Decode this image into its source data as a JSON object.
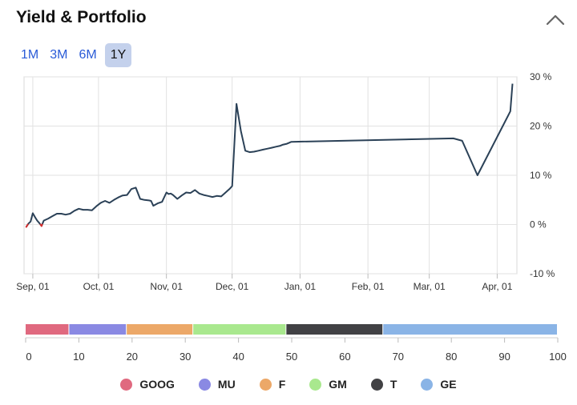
{
  "header": {
    "title": "Yield & Portfolio",
    "collapse_icon": "chevron-up-icon"
  },
  "ranges": [
    {
      "label": "1M",
      "active": false
    },
    {
      "label": "3M",
      "active": false
    },
    {
      "label": "6M",
      "active": false
    },
    {
      "label": "1Y",
      "active": true
    }
  ],
  "chart_data": [
    {
      "type": "line",
      "title": "",
      "xlabel": "",
      "ylabel": "",
      "x_tick_labels": [
        "Sep, 01",
        "Oct, 01",
        "Nov, 01",
        "Dec, 01",
        "Jan, 01",
        "Feb, 01",
        "Mar, 01",
        "Apr, 01"
      ],
      "y_tick_labels": [
        "30 %",
        "20 %",
        "10 %",
        "0 %",
        "-10 %"
      ],
      "ylim": [
        -10,
        30
      ],
      "grid": true,
      "line_color": "#2b4157",
      "negative_color": "#d62f2f",
      "series": [
        {
          "x": [
            "Aug, 29",
            "Aug, 30",
            "Aug, 31",
            "Sep, 01",
            "Sep, 02",
            "Sep, 03",
            "Sep, 04",
            "Sep, 05",
            "Sep, 06",
            "Sep, 08",
            "Sep, 10",
            "Sep, 12",
            "Sep, 14",
            "Sep, 16",
            "Sep, 18",
            "Sep, 20",
            "Sep, 22",
            "Sep, 24",
            "Sep, 26",
            "Sep, 28",
            "Sep, 30",
            "Oct, 02",
            "Oct, 04",
            "Oct, 06",
            "Oct, 08",
            "Oct, 10",
            "Oct, 12",
            "Oct, 14",
            "Oct, 16",
            "Oct, 18",
            "Oct, 20",
            "Oct, 22",
            "Oct, 24",
            "Oct, 25",
            "Oct, 26",
            "Oct, 28",
            "Oct, 30",
            "Nov, 01",
            "Nov, 02",
            "Nov, 03",
            "Nov, 04",
            "Nov, 06",
            "Nov, 08",
            "Nov, 10",
            "Nov, 12",
            "Nov, 14",
            "Nov, 16",
            "Nov, 18",
            "Nov, 20",
            "Nov, 22",
            "Nov, 24",
            "Nov, 26",
            "Nov, 28",
            "Nov, 30",
            "Dec, 01",
            "Dec, 03",
            "Dec, 05",
            "Dec, 07",
            "Dec, 09",
            "Dec, 11",
            "Dec, 13",
            "Dec, 15",
            "Dec, 17",
            "Dec, 19",
            "Dec, 21",
            "Dec, 23",
            "Dec, 24",
            "Dec, 26",
            "Dec, 27",
            "Dec, 28",
            "Mar, 12",
            "Mar, 16",
            "Mar, 23",
            "Apr, 07",
            "Apr, 08"
          ],
          "values": [
            -0.5,
            0.2,
            0.6,
            2.3,
            1.5,
            0.8,
            0.3,
            -0.3,
            0.8,
            1.2,
            1.7,
            2.2,
            2.2,
            2.0,
            2.2,
            2.8,
            3.2,
            3.0,
            3.0,
            2.9,
            3.7,
            4.4,
            4.8,
            4.4,
            5.0,
            5.5,
            5.9,
            6.0,
            7.2,
            7.5,
            5.2,
            5.0,
            4.9,
            4.8,
            3.8,
            4.3,
            4.6,
            6.5,
            6.2,
            6.3,
            6.0,
            5.2,
            5.9,
            6.5,
            6.4,
            7.0,
            6.3,
            6.0,
            5.8,
            5.6,
            5.8,
            5.7,
            6.5,
            7.3,
            7.8,
            24.5,
            19.0,
            15.0,
            14.7,
            14.8,
            15.0,
            15.2,
            15.4,
            15.6,
            15.8,
            16.0,
            16.2,
            16.4,
            16.6,
            16.8,
            17.5,
            17.0,
            10.0,
            23.0,
            28.6
          ]
        }
      ]
    },
    {
      "type": "bar",
      "orientation": "horizontal-stacked",
      "title": "",
      "xlim": [
        0,
        100
      ],
      "x_tick_labels": [
        "0",
        "10",
        "20",
        "30",
        "40",
        "50",
        "60",
        "70",
        "80",
        "90",
        "100"
      ],
      "series": [
        {
          "name": "GOOG",
          "value": 8.2,
          "color": "#e0697f"
        },
        {
          "name": "MU",
          "value": 10.8,
          "color": "#8a89e3"
        },
        {
          "name": "F",
          "value": 12.5,
          "color": "#eca868"
        },
        {
          "name": "GM",
          "value": 17.5,
          "color": "#a9e88e"
        },
        {
          "name": "T",
          "value": 18.2,
          "color": "#414144"
        },
        {
          "name": "GE",
          "value": 32.8,
          "color": "#8ab4e6"
        }
      ]
    }
  ]
}
